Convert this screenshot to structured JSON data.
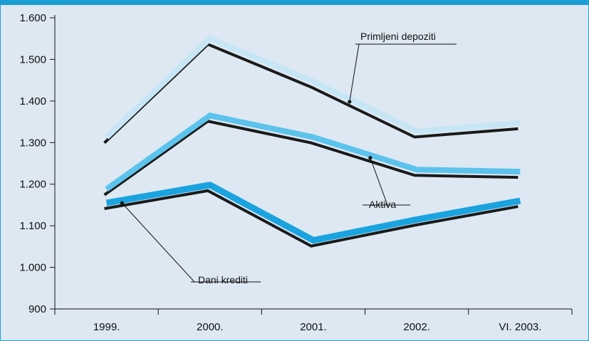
{
  "colors": {
    "background": "#dde8f2",
    "frame": "#1a9ed4",
    "shadow": "#1a1a1a",
    "primljeni_depoziti": "#c6e6f5",
    "aktiva": "#5cc3ec",
    "dani_krediti": "#1aa3de"
  },
  "chart_data": {
    "type": "line",
    "title": "",
    "xlabel": "",
    "ylabel": "",
    "categories": [
      "1999.",
      "2000.",
      "2001.",
      "2002.",
      "VI. 2003."
    ],
    "ylim": [
      900,
      1600
    ],
    "yticks": [
      900,
      1000,
      1100,
      1200,
      1300,
      1400,
      1500,
      1600
    ],
    "ytick_labels": [
      "900",
      "1.000",
      "1.100",
      "1.200",
      "1.300",
      "1.400",
      "1.500",
      "1.600"
    ],
    "grid": false,
    "legend": "none (series are labeled by callouts on the lines)",
    "series": [
      {
        "key": "primljeni_depoziti",
        "name": "Primljeni depoziti",
        "values": [
          1313,
          1550,
          1447,
          1327,
          1347
        ]
      },
      {
        "key": "aktiva",
        "name": "Aktiva",
        "values": [
          1188,
          1365,
          1313,
          1235,
          1230
        ]
      },
      {
        "key": "dani_krediti",
        "name": "Dani krediti",
        "values": [
          1155,
          1198,
          1065,
          1115,
          1160
        ]
      }
    ]
  }
}
